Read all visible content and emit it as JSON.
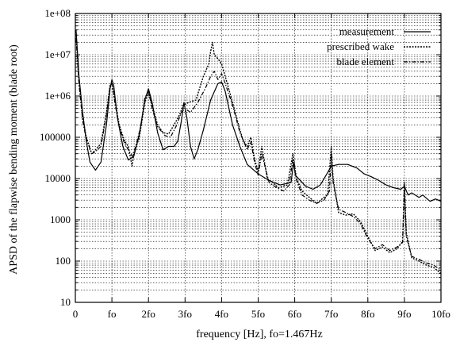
{
  "chart_data": {
    "type": "line",
    "title": "",
    "xlabel": "frequency [Hz],  fo=1.467Hz",
    "ylabel": "APSD of the flapwise bending moment (blade root)",
    "xlim": [
      0,
      10
    ],
    "ylim": [
      10,
      100000000
    ],
    "yscale": "log",
    "grid": true,
    "legend_position": "top-right",
    "x_ticks": [
      {
        "value": 0,
        "label": "0"
      },
      {
        "value": 1,
        "label": "fo"
      },
      {
        "value": 2,
        "label": "2fo"
      },
      {
        "value": 3,
        "label": "3fo"
      },
      {
        "value": 4,
        "label": "4fo"
      },
      {
        "value": 5,
        "label": "5fo"
      },
      {
        "value": 6,
        "label": "6fo"
      },
      {
        "value": 7,
        "label": "7fo"
      },
      {
        "value": 8,
        "label": "8fo"
      },
      {
        "value": 9,
        "label": "9fo"
      },
      {
        "value": 10,
        "label": "10fo"
      }
    ],
    "y_ticks": [
      {
        "value": 10,
        "label": "10"
      },
      {
        "value": 100,
        "label": "100"
      },
      {
        "value": 1000,
        "label": "1000"
      },
      {
        "value": 10000,
        "label": "10000"
      },
      {
        "value": 100000,
        "label": "100000"
      },
      {
        "value": 1000000,
        "label": "1e+06"
      },
      {
        "value": 10000000,
        "label": "1e+07"
      },
      {
        "value": 100000000,
        "label": "1e+08"
      }
    ],
    "series": [
      {
        "name": "measurement",
        "style": "solid",
        "points": [
          [
            0.02,
            40000000
          ],
          [
            0.1,
            3000000
          ],
          [
            0.2,
            400000
          ],
          [
            0.3,
            80000
          ],
          [
            0.4,
            25000
          ],
          [
            0.55,
            16000
          ],
          [
            0.7,
            25000
          ],
          [
            0.85,
            200000
          ],
          [
            0.95,
            1500000
          ],
          [
            1.0,
            2500000
          ],
          [
            1.05,
            1800000
          ],
          [
            1.15,
            300000
          ],
          [
            1.3,
            60000
          ],
          [
            1.45,
            28000
          ],
          [
            1.6,
            35000
          ],
          [
            1.75,
            120000
          ],
          [
            1.9,
            800000
          ],
          [
            2.0,
            1500000
          ],
          [
            2.1,
            700000
          ],
          [
            2.25,
            130000
          ],
          [
            2.4,
            50000
          ],
          [
            2.55,
            60000
          ],
          [
            2.7,
            60000
          ],
          [
            2.8,
            80000
          ],
          [
            2.9,
            250000
          ],
          [
            2.97,
            700000
          ],
          [
            3.05,
            300000
          ],
          [
            3.15,
            60000
          ],
          [
            3.25,
            30000
          ],
          [
            3.35,
            50000
          ],
          [
            3.5,
            150000
          ],
          [
            3.7,
            800000
          ],
          [
            3.9,
            2000000
          ],
          [
            4.0,
            2200000
          ],
          [
            4.1,
            1300000
          ],
          [
            4.3,
            200000
          ],
          [
            4.5,
            60000
          ],
          [
            4.7,
            22000
          ],
          [
            5.0,
            13000
          ],
          [
            5.3,
            9000
          ],
          [
            5.6,
            7000
          ],
          [
            5.9,
            8000
          ],
          [
            5.97,
            25000
          ],
          [
            6.02,
            12000
          ],
          [
            6.3,
            6500
          ],
          [
            6.5,
            5500
          ],
          [
            6.7,
            7000
          ],
          [
            6.9,
            14000
          ],
          [
            7.0,
            20000
          ],
          [
            7.2,
            22000
          ],
          [
            7.45,
            22000
          ],
          [
            7.7,
            18000
          ],
          [
            7.9,
            13000
          ],
          [
            8.1,
            11000
          ],
          [
            8.3,
            9000
          ],
          [
            8.5,
            7000
          ],
          [
            8.7,
            6000
          ],
          [
            8.9,
            5500
          ],
          [
            9.0,
            6500
          ],
          [
            9.1,
            4000
          ],
          [
            9.2,
            4500
          ],
          [
            9.4,
            3500
          ],
          [
            9.5,
            4000
          ],
          [
            9.7,
            2800
          ],
          [
            9.85,
            3200
          ],
          [
            10.0,
            2800
          ]
        ]
      },
      {
        "name": "prescribed wake",
        "style": "dotted",
        "points": [
          [
            0.02,
            30000000
          ],
          [
            0.1,
            2000000
          ],
          [
            0.2,
            300000
          ],
          [
            0.3,
            100000
          ],
          [
            0.45,
            40000
          ],
          [
            0.55,
            50000
          ],
          [
            0.7,
            70000
          ],
          [
            0.85,
            400000
          ],
          [
            0.95,
            1800000
          ],
          [
            1.0,
            2000000
          ],
          [
            1.08,
            800000
          ],
          [
            1.2,
            200000
          ],
          [
            1.35,
            80000
          ],
          [
            1.45,
            60000
          ],
          [
            1.55,
            20000
          ],
          [
            1.6,
            40000
          ],
          [
            1.75,
            100000
          ],
          [
            1.9,
            700000
          ],
          [
            2.0,
            1200000
          ],
          [
            2.1,
            600000
          ],
          [
            2.25,
            200000
          ],
          [
            2.4,
            130000
          ],
          [
            2.55,
            120000
          ],
          [
            2.7,
            200000
          ],
          [
            2.85,
            350000
          ],
          [
            2.95,
            600000
          ],
          [
            3.1,
            700000
          ],
          [
            3.3,
            800000
          ],
          [
            3.5,
            3000000
          ],
          [
            3.65,
            6000000
          ],
          [
            3.7,
            12000000
          ],
          [
            3.75,
            20000000
          ],
          [
            3.8,
            10000000
          ],
          [
            3.9,
            8000000
          ],
          [
            4.0,
            6000000
          ],
          [
            4.1,
            3000000
          ],
          [
            4.3,
            700000
          ],
          [
            4.5,
            150000
          ],
          [
            4.6,
            80000
          ],
          [
            4.7,
            60000
          ],
          [
            4.8,
            100000
          ],
          [
            4.9,
            30000
          ],
          [
            5.0,
            15000
          ],
          [
            5.1,
            60000
          ],
          [
            5.25,
            10000
          ],
          [
            5.4,
            8000
          ],
          [
            5.55,
            6000
          ],
          [
            5.8,
            7000
          ],
          [
            5.95,
            40000
          ],
          [
            6.05,
            10000
          ],
          [
            6.2,
            5000
          ],
          [
            6.4,
            3500
          ],
          [
            6.6,
            2500
          ],
          [
            6.8,
            3500
          ],
          [
            6.9,
            4000
          ],
          [
            7.0,
            60000
          ],
          [
            7.05,
            10000
          ],
          [
            7.2,
            1500
          ],
          [
            7.4,
            1300
          ],
          [
            7.6,
            1400
          ],
          [
            7.8,
            900
          ],
          [
            8.0,
            400
          ],
          [
            8.2,
            180
          ],
          [
            8.4,
            220
          ],
          [
            8.6,
            160
          ],
          [
            8.8,
            200
          ],
          [
            8.95,
            300
          ],
          [
            9.0,
            8000
          ],
          [
            9.05,
            500
          ],
          [
            9.2,
            120
          ],
          [
            9.4,
            100
          ],
          [
            9.6,
            80
          ],
          [
            9.8,
            70
          ],
          [
            10.0,
            50
          ]
        ]
      },
      {
        "name": "blade element",
        "style": "dashdot",
        "points": [
          [
            0.02,
            25000000
          ],
          [
            0.1,
            2000000
          ],
          [
            0.2,
            250000
          ],
          [
            0.3,
            90000
          ],
          [
            0.45,
            40000
          ],
          [
            0.55,
            45000
          ],
          [
            0.7,
            60000
          ],
          [
            0.85,
            350000
          ],
          [
            0.95,
            1700000
          ],
          [
            1.0,
            2000000
          ],
          [
            1.08,
            700000
          ],
          [
            1.2,
            180000
          ],
          [
            1.35,
            70000
          ],
          [
            1.45,
            50000
          ],
          [
            1.55,
            35000
          ],
          [
            1.65,
            60000
          ],
          [
            1.8,
            200000
          ],
          [
            1.9,
            900000
          ],
          [
            2.0,
            1300000
          ],
          [
            2.1,
            500000
          ],
          [
            2.25,
            180000
          ],
          [
            2.45,
            110000
          ],
          [
            2.6,
            100000
          ],
          [
            2.75,
            180000
          ],
          [
            2.9,
            400000
          ],
          [
            3.0,
            500000
          ],
          [
            3.15,
            400000
          ],
          [
            3.35,
            700000
          ],
          [
            3.55,
            1500000
          ],
          [
            3.7,
            3000000
          ],
          [
            3.8,
            4000000
          ],
          [
            3.9,
            2500000
          ],
          [
            4.0,
            3500000
          ],
          [
            4.1,
            2000000
          ],
          [
            4.3,
            600000
          ],
          [
            4.5,
            130000
          ],
          [
            4.7,
            50000
          ],
          [
            4.8,
            80000
          ],
          [
            4.9,
            25000
          ],
          [
            5.0,
            12000
          ],
          [
            5.1,
            40000
          ],
          [
            5.3,
            8000
          ],
          [
            5.5,
            6000
          ],
          [
            5.7,
            5000
          ],
          [
            5.85,
            7000
          ],
          [
            5.95,
            30000
          ],
          [
            6.05,
            9000
          ],
          [
            6.2,
            4000
          ],
          [
            6.4,
            3000
          ],
          [
            6.6,
            2500
          ],
          [
            6.8,
            3000
          ],
          [
            6.95,
            5000
          ],
          [
            7.0,
            40000
          ],
          [
            7.05,
            8000
          ],
          [
            7.2,
            1800
          ],
          [
            7.4,
            1500
          ],
          [
            7.6,
            1200
          ],
          [
            7.8,
            800
          ],
          [
            8.0,
            350
          ],
          [
            8.2,
            200
          ],
          [
            8.4,
            250
          ],
          [
            8.6,
            180
          ],
          [
            8.8,
            220
          ],
          [
            8.95,
            280
          ],
          [
            9.0,
            6000
          ],
          [
            9.05,
            400
          ],
          [
            9.2,
            130
          ],
          [
            9.4,
            110
          ],
          [
            9.6,
            90
          ],
          [
            9.8,
            80
          ],
          [
            10.0,
            60
          ]
        ]
      }
    ]
  }
}
